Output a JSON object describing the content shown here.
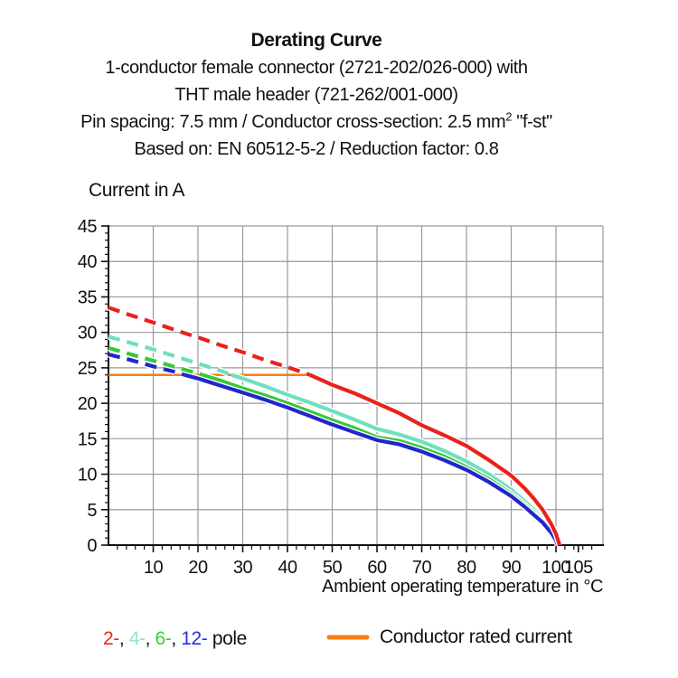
{
  "title_block": {
    "line1": "Derating Curve",
    "line2": "1-conductor female connector (2721-202/026-000) with",
    "line3": "THT male header (721-262/001-000)",
    "line4_pre": "Pin spacing: 7.5 mm / Conductor cross-section: 2.5 mm",
    "line4_sup": "2",
    "line4_post": " \"f-st\"",
    "line5": "Based on: EN 60512-5-2 / Reduction factor: 0.8"
  },
  "y_axis_title": "Current in A",
  "x_axis_title": "Ambient operating temperature in °C",
  "legend": {
    "pole_parts": [
      {
        "text": "2-",
        "color": "#f0281c"
      },
      {
        "text": ", ",
        "color": "#111111"
      },
      {
        "text": "4-",
        "color": "#8ceac6"
      },
      {
        "text": ", ",
        "color": "#111111"
      },
      {
        "text": "6-",
        "color": "#30d630"
      },
      {
        "text": ", ",
        "color": "#111111"
      },
      {
        "text": "12-",
        "color": "#2a2ee0"
      },
      {
        "text": " pole",
        "color": "#111111"
      }
    ],
    "rated_label": "Conductor rated current",
    "rated_color": "#f87d12"
  },
  "chart_data": {
    "type": "line",
    "title": "Derating Curve",
    "xlabel": "Ambient operating temperature in °C",
    "ylabel": "Current in A",
    "xlim": [
      0,
      110.5
    ],
    "ylim": [
      0,
      45
    ],
    "x_major_ticks": [
      10,
      20,
      30,
      40,
      50,
      60,
      70,
      80,
      90,
      100,
      105
    ],
    "x_gridlines": [
      10,
      20,
      30,
      40,
      50,
      60,
      70,
      80,
      90,
      100
    ],
    "x_minor_step": 2,
    "y_major_ticks": [
      0,
      5,
      10,
      15,
      20,
      25,
      30,
      35,
      40,
      45
    ],
    "y_gridlines": [
      5,
      10,
      15,
      20,
      25,
      30,
      35,
      40,
      45
    ],
    "y_minor_step": 1,
    "grid_color": "#999999",
    "axis_color": "#111111",
    "grid_on": true,
    "legend_position": "bottom",
    "dash_note": "curves are dashed above the conductor rated current (24 A), solid below",
    "reference_line": {
      "label": "Conductor rated current",
      "value": 24,
      "x_start": 0,
      "x_end": 45.2,
      "color": "#f87d12"
    },
    "series": [
      {
        "name": "4-pole",
        "color": "#6fdfbc",
        "dash_until": 27.5,
        "points": [
          [
            0,
            29.4
          ],
          [
            5,
            28.5
          ],
          [
            10,
            27.6
          ],
          [
            15,
            26.6
          ],
          [
            20,
            25.6
          ],
          [
            25,
            24.6
          ],
          [
            27.5,
            24
          ],
          [
            30,
            23.5
          ],
          [
            35,
            22.4
          ],
          [
            40,
            21.2
          ],
          [
            45,
            20.1
          ],
          [
            50,
            18.9
          ],
          [
            55,
            17.7
          ],
          [
            60,
            16.4
          ],
          [
            65,
            15.6
          ],
          [
            70,
            14.6
          ],
          [
            75,
            13.3
          ],
          [
            80,
            11.8
          ],
          [
            85,
            10.0
          ],
          [
            90,
            7.8
          ],
          [
            93,
            6.2
          ],
          [
            95,
            5.0
          ],
          [
            97,
            3.7
          ],
          [
            99,
            2.1
          ],
          [
            100,
            1.0
          ],
          [
            100.6,
            0
          ]
        ]
      },
      {
        "name": "6-pole",
        "color": "#35c939",
        "dash_until": 21,
        "points": [
          [
            0,
            27.8
          ],
          [
            5,
            26.9
          ],
          [
            10,
            26.0
          ],
          [
            15,
            25.1
          ],
          [
            20,
            24.2
          ],
          [
            21,
            24
          ],
          [
            25,
            23.2
          ],
          [
            30,
            22.1
          ],
          [
            35,
            21.1
          ],
          [
            40,
            20.0
          ],
          [
            45,
            18.8
          ],
          [
            50,
            17.6
          ],
          [
            55,
            16.5
          ],
          [
            60,
            15.2
          ],
          [
            65,
            14.7
          ],
          [
            70,
            13.7
          ],
          [
            75,
            12.5
          ],
          [
            80,
            11.0
          ],
          [
            85,
            9.3
          ],
          [
            90,
            7.2
          ],
          [
            93,
            5.7
          ],
          [
            95,
            4.6
          ],
          [
            97,
            3.4
          ],
          [
            99,
            1.9
          ],
          [
            100,
            0.8
          ],
          [
            100.5,
            0
          ]
        ]
      },
      {
        "name": "12-pole",
        "color": "#2226cc",
        "dash_until": 17,
        "points": [
          [
            0,
            26.9
          ],
          [
            5,
            26.1
          ],
          [
            10,
            25.2
          ],
          [
            15,
            24.4
          ],
          [
            17,
            24
          ],
          [
            20,
            23.5
          ],
          [
            25,
            22.5
          ],
          [
            30,
            21.5
          ],
          [
            35,
            20.5
          ],
          [
            40,
            19.4
          ],
          [
            45,
            18.2
          ],
          [
            50,
            17.0
          ],
          [
            55,
            15.9
          ],
          [
            60,
            14.8
          ],
          [
            65,
            14.2
          ],
          [
            70,
            13.2
          ],
          [
            75,
            12.0
          ],
          [
            80,
            10.6
          ],
          [
            85,
            8.9
          ],
          [
            90,
            6.9
          ],
          [
            93,
            5.4
          ],
          [
            95,
            4.3
          ],
          [
            97,
            3.2
          ],
          [
            99,
            1.7
          ],
          [
            100,
            0.7
          ],
          [
            100.4,
            0
          ]
        ]
      },
      {
        "name": "2-pole",
        "color": "#e8231c",
        "dash_until": 45,
        "points": [
          [
            0,
            33.5
          ],
          [
            5,
            32.4
          ],
          [
            10,
            31.4
          ],
          [
            15,
            30.3
          ],
          [
            20,
            29.3
          ],
          [
            25,
            28.2
          ],
          [
            30,
            27.2
          ],
          [
            35,
            26.1
          ],
          [
            40,
            25.1
          ],
          [
            45,
            24
          ],
          [
            50,
            22.6
          ],
          [
            55,
            21.4
          ],
          [
            60,
            20.0
          ],
          [
            65,
            18.6
          ],
          [
            70,
            16.9
          ],
          [
            75,
            15.5
          ],
          [
            80,
            14.0
          ],
          [
            85,
            12.0
          ],
          [
            90,
            9.8
          ],
          [
            93,
            8.0
          ],
          [
            95,
            6.6
          ],
          [
            97,
            5.0
          ],
          [
            99,
            2.9
          ],
          [
            100,
            1.6
          ],
          [
            100.8,
            0
          ]
        ]
      }
    ]
  }
}
